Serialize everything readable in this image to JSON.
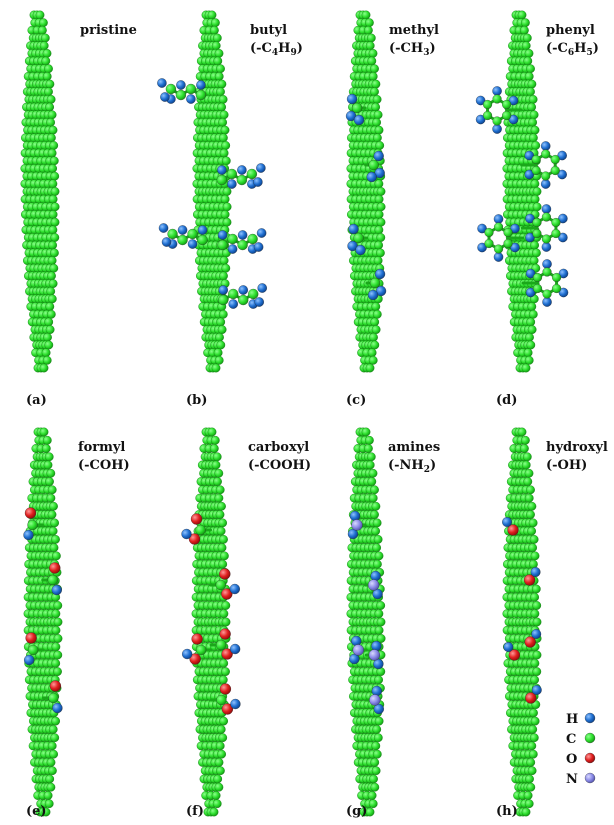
{
  "panels": [
    {
      "letter": "(a)",
      "name": "pristine",
      "formula": "",
      "formula_parts": []
    },
    {
      "letter": "(b)",
      "name": "butyl",
      "formula": "(-C4H9)",
      "formula_parts": [
        [
          "(-C",
          ""
        ],
        [
          "4",
          "sub"
        ],
        [
          "H",
          ""
        ],
        [
          "9",
          "sub"
        ],
        [
          ")",
          ""
        ]
      ]
    },
    {
      "letter": "(c)",
      "name": "methyl",
      "formula": "(-CH3)",
      "formula_parts": [
        [
          "(-CH",
          ""
        ],
        [
          "3",
          "sub"
        ],
        [
          ")",
          ""
        ]
      ]
    },
    {
      "letter": "(d)",
      "name": "phenyl",
      "formula": "(-C6H5)",
      "formula_parts": [
        [
          "(-C",
          ""
        ],
        [
          "6",
          "sub"
        ],
        [
          "H",
          ""
        ],
        [
          "5",
          "sub"
        ],
        [
          ")",
          ""
        ]
      ]
    },
    {
      "letter": "(e)",
      "name": "formyl",
      "formula": "(-COH)",
      "formula_parts": [
        [
          "(-COH)",
          ""
        ]
      ]
    },
    {
      "letter": "(f)",
      "name": "carboxyl",
      "formula": "(-COOH)",
      "formula_parts": [
        [
          "(-COOH)",
          ""
        ]
      ]
    },
    {
      "letter": "(g)",
      "name": "amines",
      "formula": "(-NH2)",
      "formula_parts": [
        [
          "(-NH",
          ""
        ],
        [
          "2",
          "sub"
        ],
        [
          ")",
          ""
        ]
      ]
    },
    {
      "letter": "(h)",
      "name": "hydroxyl",
      "formula": "(-OH)",
      "formula_parts": [
        [
          "(-OH)",
          ""
        ]
      ]
    }
  ],
  "legend": [
    {
      "element": "H",
      "color": "#1f6fd1"
    },
    {
      "element": "C",
      "color": "#2ee02e"
    },
    {
      "element": "O",
      "color": "#e01f1f"
    },
    {
      "element": "N",
      "color": "#8c8ce8"
    }
  ],
  "atom_colors": {
    "H": "#1f6fd1",
    "C": "#2ee02e",
    "O": "#e01f1f",
    "N": "#8c8ce8",
    "carbon_dark": "#159a15"
  }
}
